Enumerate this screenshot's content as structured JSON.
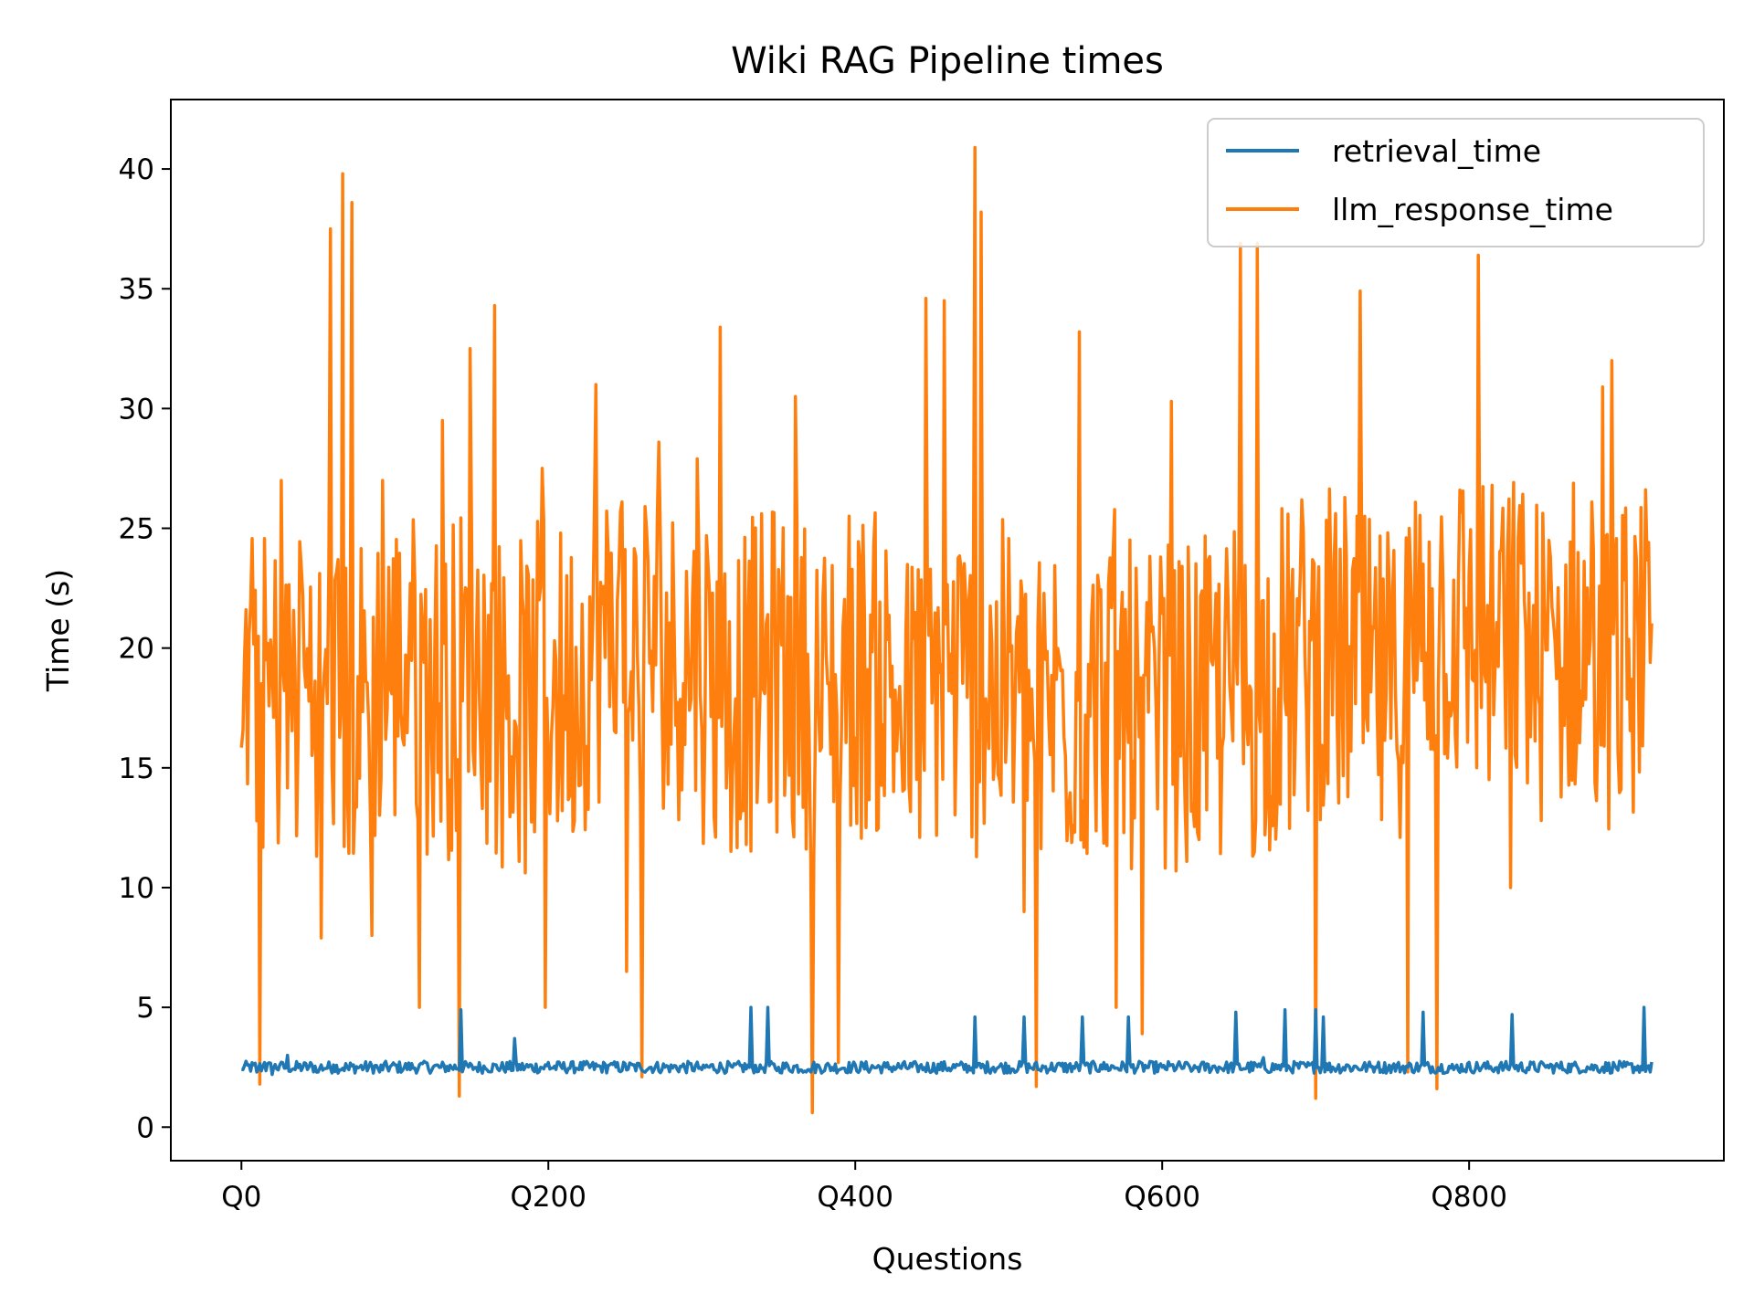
{
  "chart_data": {
    "type": "line",
    "title": "Wiki RAG Pipeline times",
    "xlabel": "Questions",
    "ylabel": "Time (s)",
    "xlim": [
      -46,
      966
    ],
    "ylim": [
      -1.4,
      42.9
    ],
    "xticks": [
      {
        "value": 0,
        "label": "Q0"
      },
      {
        "value": 200,
        "label": "Q200"
      },
      {
        "value": 400,
        "label": "Q400"
      },
      {
        "value": 600,
        "label": "Q600"
      },
      {
        "value": 800,
        "label": "Q800"
      }
    ],
    "yticks": [
      0,
      5,
      10,
      15,
      20,
      25,
      30,
      35,
      40
    ],
    "grid": false,
    "legend_position": "top-right",
    "n_points": 920,
    "series": [
      {
        "name": "retrieval_time",
        "color": "#1f77b4",
        "baseline": 2.5,
        "values": [
          [
            0,
            2.4
          ],
          [
            5,
            2.6
          ],
          [
            10,
            2.3
          ],
          [
            15,
            2.7
          ],
          [
            20,
            2.2
          ],
          [
            25,
            2.6
          ],
          [
            30,
            3.0
          ],
          [
            35,
            2.4
          ],
          [
            40,
            2.5
          ],
          [
            45,
            2.7
          ],
          [
            50,
            2.3
          ],
          [
            60,
            2.6
          ],
          [
            70,
            2.4
          ],
          [
            80,
            2.5
          ],
          [
            90,
            2.3
          ],
          [
            100,
            2.6
          ],
          [
            110,
            2.4
          ],
          [
            120,
            2.7
          ],
          [
            130,
            2.5
          ],
          [
            143,
            4.9
          ],
          [
            150,
            2.6
          ],
          [
            160,
            2.4
          ],
          [
            170,
            2.7
          ],
          [
            178,
            3.7
          ],
          [
            185,
            2.5
          ],
          [
            200,
            2.7
          ],
          [
            220,
            2.4
          ],
          [
            240,
            2.6
          ],
          [
            260,
            2.5
          ],
          [
            280,
            2.6
          ],
          [
            300,
            2.4
          ],
          [
            320,
            2.5
          ],
          [
            332,
            5.0
          ],
          [
            338,
            2.6
          ],
          [
            343,
            5.0
          ],
          [
            350,
            2.5
          ],
          [
            370,
            2.4
          ],
          [
            400,
            2.6
          ],
          [
            420,
            2.5
          ],
          [
            440,
            2.6
          ],
          [
            478,
            4.6
          ],
          [
            490,
            2.5
          ],
          [
            510,
            4.6
          ],
          [
            520,
            2.4
          ],
          [
            548,
            4.6
          ],
          [
            560,
            2.6
          ],
          [
            578,
            4.6
          ],
          [
            600,
            2.5
          ],
          [
            620,
            2.4
          ],
          [
            648,
            4.8
          ],
          [
            652,
            2.4
          ],
          [
            666,
            2.9
          ],
          [
            680,
            4.9
          ],
          [
            700,
            4.9
          ],
          [
            705,
            4.6
          ],
          [
            720,
            2.6
          ],
          [
            740,
            2.5
          ],
          [
            770,
            4.8
          ],
          [
            790,
            2.4
          ],
          [
            828,
            4.7
          ],
          [
            850,
            2.5
          ],
          [
            880,
            2.6
          ],
          [
            900,
            2.5
          ],
          [
            914,
            5.0
          ],
          [
            918,
            2.3
          ]
        ]
      },
      {
        "name": "llm_response_time",
        "color": "#ff7f0e",
        "peaks": [
          [
            3,
            21.6
          ],
          [
            12,
            1.8
          ],
          [
            20,
            19.3
          ],
          [
            26,
            27.0
          ],
          [
            39,
            23.4
          ],
          [
            52,
            7.9
          ],
          [
            58,
            37.5
          ],
          [
            66,
            39.8
          ],
          [
            72,
            38.6
          ],
          [
            85,
            8.0
          ],
          [
            92,
            27.0
          ],
          [
            110,
            22.7
          ],
          [
            116,
            5.0
          ],
          [
            131,
            29.5
          ],
          [
            142,
            1.3
          ],
          [
            149,
            32.5
          ],
          [
            165,
            34.3
          ],
          [
            180,
            15.0
          ],
          [
            196,
            27.5
          ],
          [
            198,
            5.0
          ],
          [
            231,
            31.0
          ],
          [
            246,
            23.3
          ],
          [
            251,
            6.5
          ],
          [
            261,
            2.1
          ],
          [
            272,
            28.6
          ],
          [
            297,
            27.9
          ],
          [
            312,
            33.4
          ],
          [
            334,
            18.0
          ],
          [
            361,
            30.5
          ],
          [
            372,
            0.6
          ],
          [
            389,
            2.7
          ],
          [
            446,
            34.6
          ],
          [
            458,
            34.5
          ],
          [
            478,
            40.9
          ],
          [
            482,
            38.2
          ],
          [
            510,
            9.0
          ],
          [
            518,
            1.7
          ],
          [
            546,
            33.2
          ],
          [
            570,
            5.0
          ],
          [
            587,
            3.9
          ],
          [
            606,
            30.3
          ],
          [
            640,
            16.3
          ],
          [
            651,
            36.9
          ],
          [
            662,
            36.9
          ],
          [
            700,
            1.2
          ],
          [
            729,
            34.9
          ],
          [
            759,
            24.6
          ],
          [
            760,
            2.3
          ],
          [
            779,
            1.6
          ],
          [
            806,
            36.4
          ],
          [
            827,
            10.0
          ],
          [
            832,
            24.6
          ],
          [
            874,
            17.6
          ],
          [
            880,
            26.1
          ],
          [
            887,
            30.9
          ],
          [
            893,
            32.0
          ],
          [
            910,
            20.9
          ],
          [
            914,
            20.2
          ],
          [
            918,
            19.4
          ]
        ]
      }
    ]
  }
}
